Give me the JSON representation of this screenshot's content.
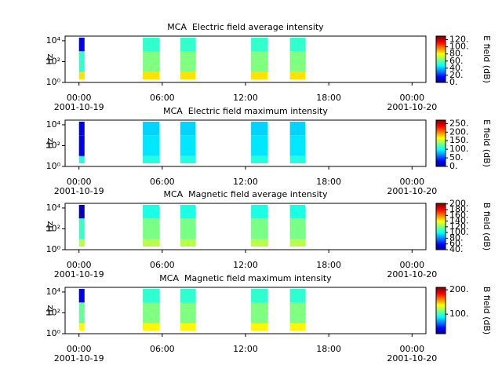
{
  "chart_data": [
    {
      "type": "spectrogram",
      "title": "MCA  Electric field average intensity",
      "ylabel": "Hz",
      "colorbar_label": "E field (dB)",
      "colormap": "jet",
      "yscale": "log",
      "xlim": [
        -1,
        25
      ],
      "xticks": [
        {
          "value": 0,
          "label": "00:00"
        },
        {
          "value": 6,
          "label": "06:00"
        },
        {
          "value": 12,
          "label": "12:00"
        },
        {
          "value": 18,
          "label": "18:00"
        },
        {
          "value": 24,
          "label": "00:00"
        }
      ],
      "xtick_dates": [
        {
          "value": 0,
          "label": "2001-10-19"
        },
        {
          "value": 24,
          "label": "2001-10-20"
        }
      ],
      "ylim": [
        1,
        28000
      ],
      "yticks": [
        {
          "value": 1,
          "label": "10⁰"
        },
        {
          "value": 100,
          "label": "10²"
        },
        {
          "value": 10000,
          "label": "10⁴"
        }
      ],
      "clim": [
        0,
        130
      ],
      "cticks": [
        {
          "value": 0,
          "label": "0."
        },
        {
          "value": 20,
          "label": "20."
        },
        {
          "value": 40,
          "label": "40."
        },
        {
          "value": 60,
          "label": "60."
        },
        {
          "value": 80,
          "label": "80."
        },
        {
          "value": 100,
          "label": "100."
        },
        {
          "value": 120,
          "label": "120."
        }
      ],
      "bands": [
        2,
        10,
        1000,
        20000
      ],
      "blocks": [
        {
          "start": 0,
          "end": 0.4,
          "values": [
            85,
            55,
            15
          ]
        },
        {
          "start": 4.6,
          "end": 5.8,
          "values": [
            85,
            65,
            55
          ]
        },
        {
          "start": 7.3,
          "end": 8.4,
          "values": [
            85,
            65,
            55
          ]
        },
        {
          "start": 12.4,
          "end": 13.6,
          "values": [
            85,
            65,
            55
          ]
        },
        {
          "start": 15.2,
          "end": 16.3,
          "values": [
            85,
            65,
            55
          ]
        }
      ]
    },
    {
      "type": "spectrogram",
      "title": "MCA  Electric field maximum intensity",
      "ylabel": "Hz",
      "colorbar_label": "E field (dB)",
      "colormap": "jet",
      "yscale": "log",
      "xlim": [
        -1,
        25
      ],
      "xticks": [
        {
          "value": 0,
          "label": "00:00"
        },
        {
          "value": 6,
          "label": "06:00"
        },
        {
          "value": 12,
          "label": "12:00"
        },
        {
          "value": 18,
          "label": "18:00"
        },
        {
          "value": 24,
          "label": "00:00"
        }
      ],
      "xtick_dates": [
        {
          "value": 0,
          "label": "2001-10-19"
        },
        {
          "value": 24,
          "label": "2001-10-20"
        }
      ],
      "ylim": [
        1,
        28000
      ],
      "yticks": [
        {
          "value": 1,
          "label": "10⁰"
        },
        {
          "value": 100,
          "label": "10²"
        },
        {
          "value": 10000,
          "label": "10⁴"
        }
      ],
      "clim": [
        0,
        270
      ],
      "cticks": [
        {
          "value": 0,
          "label": "0."
        },
        {
          "value": 50,
          "label": "50."
        },
        {
          "value": 100,
          "label": "100."
        },
        {
          "value": 150,
          "label": "150."
        },
        {
          "value": 200,
          "label": "200."
        },
        {
          "value": 250,
          "label": "250."
        }
      ],
      "bands": [
        2,
        10,
        1000,
        20000
      ],
      "blocks": [
        {
          "start": 0,
          "end": 0.4,
          "values": [
            110,
            30,
            30
          ]
        },
        {
          "start": 4.6,
          "end": 5.8,
          "values": [
            110,
            95,
            90
          ]
        },
        {
          "start": 7.3,
          "end": 8.4,
          "values": [
            110,
            95,
            90
          ]
        },
        {
          "start": 12.4,
          "end": 13.6,
          "values": [
            110,
            95,
            90
          ]
        },
        {
          "start": 15.2,
          "end": 16.3,
          "values": [
            110,
            95,
            90
          ]
        }
      ]
    },
    {
      "type": "spectrogram",
      "title": "MCA  Magnetic field average intensity",
      "ylabel": "Hz",
      "colorbar_label": "B field (dB)",
      "colormap": "jet",
      "yscale": "log",
      "xlim": [
        -1,
        25
      ],
      "xticks": [
        {
          "value": 0,
          "label": "00:00"
        },
        {
          "value": 6,
          "label": "06:00"
        },
        {
          "value": 12,
          "label": "12:00"
        },
        {
          "value": 18,
          "label": "18:00"
        },
        {
          "value": 24,
          "label": "00:00"
        }
      ],
      "xtick_dates": [
        {
          "value": 0,
          "label": "2001-10-19"
        },
        {
          "value": 24,
          "label": "2001-10-20"
        }
      ],
      "ylim": [
        1,
        28000
      ],
      "yticks": [
        {
          "value": 1,
          "label": "10⁰"
        },
        {
          "value": 100,
          "label": "10²"
        },
        {
          "value": 10000,
          "label": "10⁴"
        }
      ],
      "clim": [
        40,
        202
      ],
      "cticks": [
        {
          "value": 40,
          "label": "40."
        },
        {
          "value": 60,
          "label": "60."
        },
        {
          "value": 80,
          "label": "80."
        },
        {
          "value": 100,
          "label": "100."
        },
        {
          "value": 120,
          "label": "120."
        },
        {
          "value": 140,
          "label": "140."
        },
        {
          "value": 160,
          "label": "160."
        },
        {
          "value": 180,
          "label": "180."
        },
        {
          "value": 200,
          "label": "200."
        }
      ],
      "bands": [
        2,
        10,
        1000,
        20000
      ],
      "blocks": [
        {
          "start": 0,
          "end": 0.4,
          "values": [
            130,
            110,
            50
          ]
        },
        {
          "start": 4.6,
          "end": 5.8,
          "values": [
            130,
            120,
            105
          ]
        },
        {
          "start": 7.3,
          "end": 8.4,
          "values": [
            130,
            120,
            105
          ]
        },
        {
          "start": 12.4,
          "end": 13.6,
          "values": [
            130,
            120,
            105
          ]
        },
        {
          "start": 15.2,
          "end": 16.3,
          "values": [
            130,
            120,
            105
          ]
        }
      ]
    },
    {
      "type": "spectrogram",
      "title": "MCA  Magnetic field maximum intensity",
      "ylabel": "Hz",
      "colorbar_label": "B field (dB)",
      "colormap": "jet",
      "yscale": "log",
      "xlim": [
        -1,
        25
      ],
      "xticks": [
        {
          "value": 0,
          "label": "00:00"
        },
        {
          "value": 6,
          "label": "06:00"
        },
        {
          "value": 12,
          "label": "12:00"
        },
        {
          "value": 18,
          "label": "18:00"
        },
        {
          "value": 24,
          "label": "00:00"
        }
      ],
      "xtick_dates": [
        {
          "value": 0,
          "label": "2001-10-19"
        },
        {
          "value": 24,
          "label": "2001-10-20"
        }
      ],
      "ylim": [
        1,
        28000
      ],
      "yticks": [
        {
          "value": 1,
          "label": "10⁰"
        },
        {
          "value": 100,
          "label": "10²"
        },
        {
          "value": 10000,
          "label": "10⁴"
        }
      ],
      "clim": [
        20,
        210
      ],
      "cticks": [
        {
          "value": 100,
          "label": "100."
        },
        {
          "value": 200,
          "label": "200."
        }
      ],
      "bands": [
        2,
        10,
        1000,
        20000
      ],
      "blocks": [
        {
          "start": 0,
          "end": 0.4,
          "values": [
            140,
            110,
            40
          ]
        },
        {
          "start": 4.6,
          "end": 5.8,
          "values": [
            140,
            115,
            100
          ]
        },
        {
          "start": 7.3,
          "end": 8.4,
          "values": [
            140,
            115,
            100
          ]
        },
        {
          "start": 12.4,
          "end": 13.6,
          "values": [
            140,
            115,
            100
          ]
        },
        {
          "start": 15.2,
          "end": 16.3,
          "values": [
            140,
            115,
            100
          ]
        }
      ]
    }
  ]
}
